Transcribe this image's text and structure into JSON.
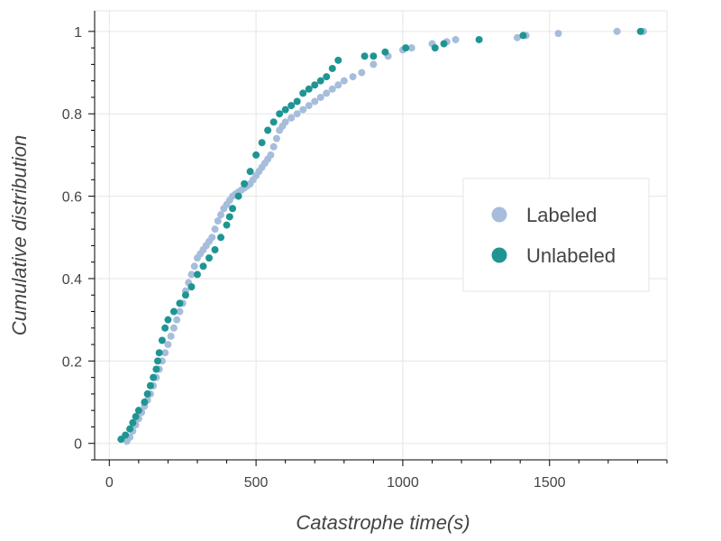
{
  "chart_data": {
    "type": "scatter",
    "xlabel": "Catastrophe time(s)",
    "ylabel": "Cumulative distribution",
    "xlim": [
      -50,
      1900
    ],
    "ylim": [
      -0.04,
      1.05
    ],
    "xticks": [
      0,
      500,
      1000,
      1500
    ],
    "xtick_labels": [
      "0",
      "500",
      "1000",
      "1500"
    ],
    "yticks": [
      0,
      0.2,
      0.4,
      0.6,
      0.8,
      1
    ],
    "ytick_labels": [
      "0",
      "0.2",
      "0.4",
      "0.6",
      "0.8",
      "1"
    ],
    "grid": true,
    "legend_position": "right",
    "series": [
      {
        "name": "Labeled",
        "color": "#a6bddb",
        "x": [
          60,
          70,
          80,
          90,
          100,
          110,
          120,
          130,
          140,
          150,
          160,
          170,
          180,
          190,
          200,
          210,
          220,
          230,
          240,
          250,
          260,
          270,
          280,
          290,
          300,
          310,
          320,
          330,
          340,
          350,
          360,
          370,
          380,
          390,
          400,
          410,
          420,
          430,
          440,
          450,
          460,
          470,
          480,
          490,
          500,
          510,
          520,
          530,
          540,
          550,
          560,
          570,
          580,
          590,
          600,
          620,
          640,
          660,
          680,
          700,
          720,
          740,
          760,
          780,
          800,
          830,
          860,
          900,
          950,
          1000,
          1030,
          1100,
          1150,
          1180,
          1390,
          1420,
          1530,
          1730,
          1820
        ],
        "y": [
          0.005,
          0.015,
          0.03,
          0.045,
          0.06,
          0.075,
          0.09,
          0.105,
          0.12,
          0.14,
          0.16,
          0.18,
          0.2,
          0.22,
          0.24,
          0.26,
          0.28,
          0.3,
          0.32,
          0.34,
          0.37,
          0.39,
          0.41,
          0.43,
          0.45,
          0.46,
          0.47,
          0.48,
          0.49,
          0.5,
          0.52,
          0.54,
          0.555,
          0.57,
          0.58,
          0.59,
          0.6,
          0.605,
          0.61,
          0.615,
          0.62,
          0.625,
          0.63,
          0.64,
          0.65,
          0.66,
          0.67,
          0.68,
          0.69,
          0.7,
          0.72,
          0.74,
          0.76,
          0.77,
          0.78,
          0.79,
          0.8,
          0.81,
          0.82,
          0.83,
          0.84,
          0.85,
          0.86,
          0.87,
          0.88,
          0.89,
          0.9,
          0.92,
          0.94,
          0.955,
          0.96,
          0.97,
          0.975,
          0.98,
          0.985,
          0.99,
          0.995,
          1.0,
          1.0
        ]
      },
      {
        "name": "Unlabeled",
        "color": "#1f9593",
        "x": [
          40,
          55,
          70,
          80,
          90,
          100,
          120,
          130,
          140,
          150,
          160,
          165,
          170,
          180,
          190,
          200,
          220,
          240,
          260,
          280,
          300,
          320,
          340,
          360,
          380,
          400,
          410,
          420,
          440,
          460,
          480,
          500,
          520,
          540,
          560,
          580,
          600,
          620,
          640,
          660,
          680,
          700,
          720,
          740,
          760,
          780,
          870,
          900,
          940,
          1010,
          1110,
          1140,
          1260,
          1410,
          1810
        ],
        "y": [
          0.01,
          0.02,
          0.035,
          0.05,
          0.065,
          0.08,
          0.1,
          0.12,
          0.14,
          0.16,
          0.18,
          0.2,
          0.22,
          0.25,
          0.28,
          0.3,
          0.32,
          0.34,
          0.36,
          0.38,
          0.41,
          0.43,
          0.45,
          0.47,
          0.5,
          0.53,
          0.55,
          0.57,
          0.6,
          0.63,
          0.66,
          0.7,
          0.73,
          0.76,
          0.78,
          0.8,
          0.81,
          0.82,
          0.83,
          0.85,
          0.86,
          0.87,
          0.88,
          0.89,
          0.91,
          0.93,
          0.94,
          0.94,
          0.95,
          0.96,
          0.96,
          0.97,
          0.98,
          0.99,
          1.0
        ]
      }
    ]
  }
}
